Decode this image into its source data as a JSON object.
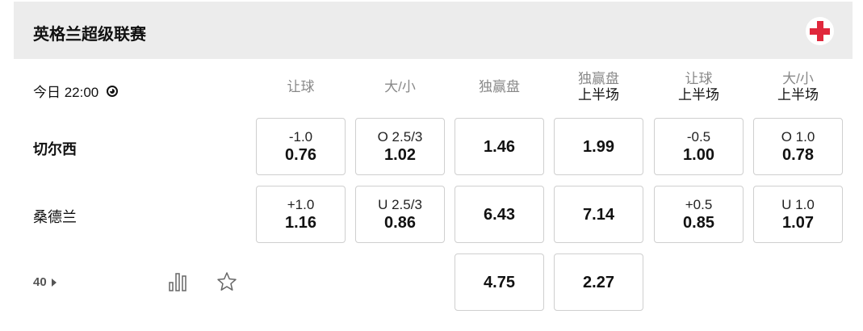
{
  "league": {
    "title": "英格兰超级联赛",
    "flag_icon": "england-flag-icon",
    "flag_color": "#e0283c"
  },
  "match": {
    "time": "今日 22:00",
    "more_count": "40"
  },
  "columns": [
    {
      "a": "让球",
      "b": ""
    },
    {
      "a": "大/小",
      "b": ""
    },
    {
      "a": "独赢盘",
      "b": ""
    },
    {
      "a": "独赢盘",
      "b": "上半场"
    },
    {
      "a": "让球",
      "b": "上半场"
    },
    {
      "a": "大/小",
      "b": "上半场"
    }
  ],
  "rows": [
    {
      "team": "切尔西",
      "bold": true,
      "cells": [
        {
          "line": "-1.0",
          "odds": "0.76"
        },
        {
          "line": "O 2.5/3",
          "odds": "1.02"
        },
        {
          "line": "",
          "odds": "1.46"
        },
        {
          "line": "",
          "odds": "1.99"
        },
        {
          "line": "-0.5",
          "odds": "1.00"
        },
        {
          "line": "O 1.0",
          "odds": "0.78"
        }
      ]
    },
    {
      "team": "桑德兰",
      "bold": false,
      "cells": [
        {
          "line": "+1.0",
          "odds": "1.16"
        },
        {
          "line": "U 2.5/3",
          "odds": "0.86"
        },
        {
          "line": "",
          "odds": "6.43"
        },
        {
          "line": "",
          "odds": "7.14"
        },
        {
          "line": "+0.5",
          "odds": "0.85"
        },
        {
          "line": "U 1.0",
          "odds": "1.07"
        }
      ]
    },
    {
      "team": "",
      "bold": false,
      "cells": [
        null,
        null,
        {
          "line": "",
          "odds": "4.75"
        },
        {
          "line": "",
          "odds": "2.27"
        },
        null,
        null
      ]
    }
  ]
}
